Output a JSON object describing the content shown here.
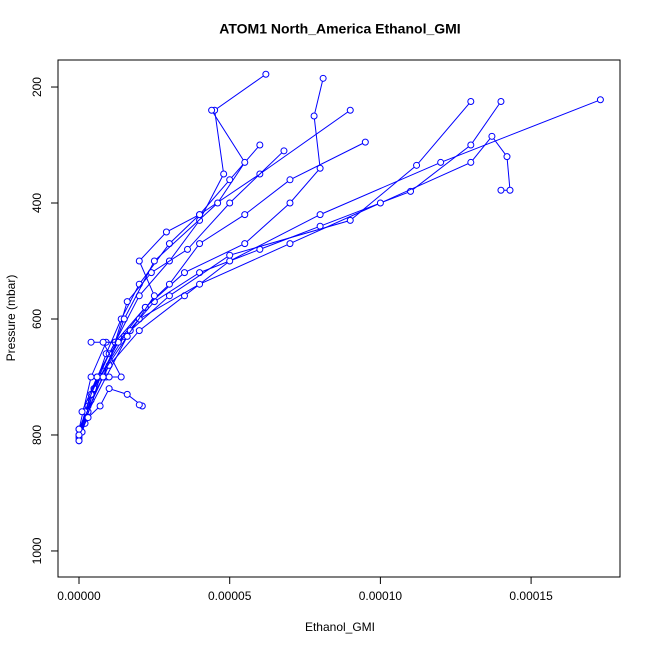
{
  "chart_data": {
    "type": "line",
    "title": "ATOM1 North_America Ethanol_GMI",
    "x_label": "Ethanol_GMI",
    "y_label": "Pressure (mbar)",
    "xlim": [
      -6.97e-06,
      0.0001795
    ],
    "ylim": [
      1044.9,
      153.4
    ],
    "xticks": [
      {
        "value": 0,
        "label": "0.00000"
      },
      {
        "value": 5e-05,
        "label": "0.00005"
      },
      {
        "value": 0.0001,
        "label": "0.00010"
      },
      {
        "value": 0.00015,
        "label": "0.00015"
      }
    ],
    "yticks": [
      200,
      400,
      600,
      800,
      1000
    ],
    "markers": true,
    "series": [
      {
        "color": "#0000ff",
        "x": [
          0,
          2e-06,
          5e-06,
          9e-06,
          1.4e-05,
          2e-05,
          3e-05,
          4e-05,
          5e-05,
          6e-05
        ],
        "values": [
          810,
          780,
          720,
          660,
          600,
          540,
          470,
          420,
          360,
          300
        ]
      },
      {
        "color": "#0000ff",
        "x": [
          0,
          3e-06,
          8e-06,
          1.5e-05,
          2.5e-05,
          4e-05,
          6e-05,
          8e-05,
          0.00011,
          0.00013,
          0.00014
        ],
        "values": [
          800,
          750,
          690,
          630,
          570,
          520,
          480,
          440,
          380,
          300,
          225
        ]
      },
      {
        "color": "#0000ff",
        "x": [
          0,
          4e-06,
          1e-05,
          2e-05,
          3.5e-05,
          5e-05,
          8e-05,
          0.00012,
          0.000173
        ],
        "values": [
          790,
          740,
          680,
          620,
          560,
          500,
          420,
          330,
          222
        ]
      },
      {
        "color": "#0000ff",
        "x": [
          1e-06,
          6e-06,
          1.2e-05,
          2e-05,
          3e-05,
          4e-05,
          4.8e-05,
          4.5e-05,
          6.2e-05
        ],
        "values": [
          795,
          700,
          640,
          560,
          500,
          430,
          350,
          240,
          178
        ]
      },
      {
        "color": "#0000ff",
        "x": [
          0,
          5e-06,
          1.3e-05,
          2.2e-05,
          3.5e-05,
          5.5e-05,
          7e-05,
          8e-05,
          7.8e-05,
          8.1e-05
        ],
        "values": [
          805,
          720,
          640,
          580,
          520,
          470,
          400,
          340,
          250,
          185
        ]
      },
      {
        "color": "#0000ff",
        "x": [
          0,
          4e-06,
          1e-05,
          2e-05,
          4e-05,
          7e-05,
          0.0001,
          0.00013,
          0.000137,
          0.000142,
          0.000143,
          0.00014
        ],
        "values": [
          800,
          730,
          660,
          600,
          540,
          470,
          400,
          330,
          285,
          320,
          378,
          378
        ]
      },
      {
        "color": "#0000ff",
        "x": [
          0,
          3e-06,
          9e-06,
          1.7e-05,
          3e-05,
          5e-05,
          9e-05,
          0.000112,
          0.00013
        ],
        "values": [
          810,
          760,
          700,
          620,
          560,
          490,
          430,
          335,
          225
        ]
      },
      {
        "color": "#0000ff",
        "x": [
          0,
          2e-06,
          6e-06,
          1.2e-05,
          2.2e-05,
          3e-05,
          4e-05,
          5.5e-05,
          7e-05,
          9.5e-05
        ],
        "values": [
          800,
          760,
          700,
          640,
          580,
          540,
          470,
          420,
          360,
          295
        ]
      },
      {
        "color": "#0000ff",
        "x": [
          1e-06,
          7e-06,
          1.6e-05,
          2.5e-05,
          2e-05,
          2.9e-05,
          4e-05,
          6e-05,
          9e-05
        ],
        "values": [
          795,
          700,
          630,
          560,
          500,
          450,
          420,
          350,
          240
        ]
      },
      {
        "color": "#0000ff",
        "x": [
          0,
          4e-06,
          9e-06,
          1.2e-05,
          1.6e-05,
          2.4e-05,
          3.6e-05,
          5e-05,
          6.8e-05
        ],
        "values": [
          790,
          700,
          640,
          640,
          570,
          520,
          480,
          400,
          310
        ]
      },
      {
        "color": "#0000ff",
        "x": [
          1e-06,
          6e-06,
          1e-05,
          1.4e-05,
          8e-06,
          4e-06,
          1.3e-05
        ],
        "values": [
          760,
          700,
          700,
          700,
          640,
          640,
          640
        ]
      },
      {
        "color": "#0000ff",
        "x": [
          0,
          3e-06,
          7e-06,
          1e-05,
          1.6e-05,
          2.1e-05,
          2e-05
        ],
        "values": [
          800,
          770,
          750,
          720,
          730,
          750,
          748
        ]
      },
      {
        "color": "#0000ff",
        "x": [
          0,
          8e-06,
          1.5e-05,
          2.5e-05,
          4.6e-05,
          5.5e-05,
          4.4e-05
        ],
        "values": [
          790,
          700,
          600,
          500,
          400,
          330,
          240
        ]
      }
    ]
  }
}
